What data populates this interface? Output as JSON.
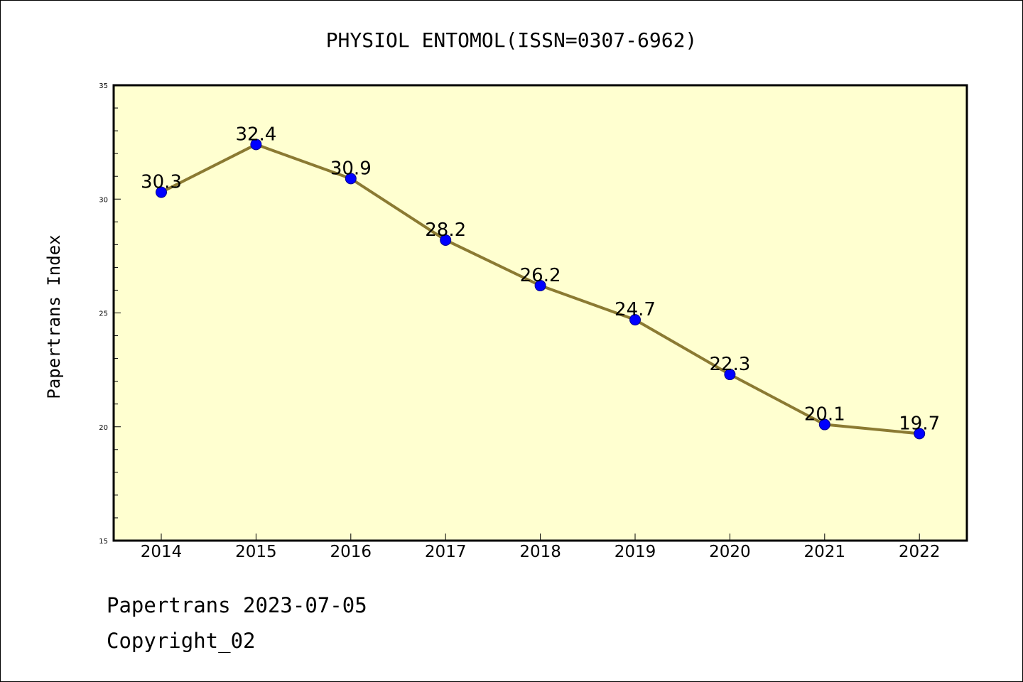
{
  "chart_data": {
    "type": "line",
    "title": "PHYSIOL ENTOMOL(ISSN=0307-6962)",
    "xlabel": "",
    "ylabel": "Papertrans Index",
    "categories": [
      "2014",
      "2015",
      "2016",
      "2017",
      "2018",
      "2019",
      "2020",
      "2021",
      "2022"
    ],
    "series": [
      {
        "values": [
          30.3,
          32.4,
          30.9,
          28.2,
          26.2,
          24.7,
          22.3,
          20.1,
          19.7
        ]
      }
    ],
    "data_labels": [
      "30.3",
      "32.4",
      "30.9",
      "28.2",
      "26.2",
      "24.7",
      "22.3",
      "20.1",
      "19.7"
    ],
    "ylim": [
      15,
      35
    ],
    "yticks": [
      15,
      20,
      25,
      30,
      35
    ],
    "ytick_labels": [
      "15",
      "20",
      "25",
      "30",
      "35"
    ],
    "grid": false,
    "legend": "none"
  },
  "colors": {
    "plot_background": "#ffffd0",
    "line": "#8b7a32",
    "marker_fill": "#0000ff",
    "marker_edge": "#00008b",
    "axes": "#000000"
  },
  "footer": {
    "date_line": "Papertrans 2023-07-05",
    "copyright": "Copyright_02"
  }
}
